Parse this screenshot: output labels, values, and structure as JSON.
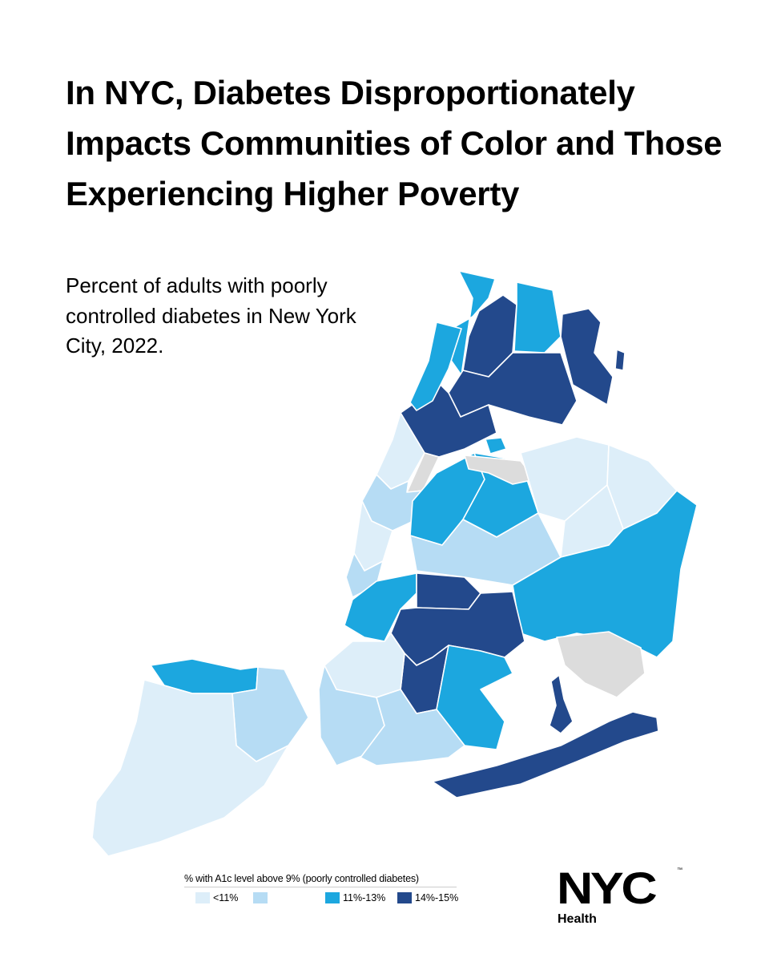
{
  "title": "In NYC, Diabetes Disproportionately Impacts Communities of Color and Those Experiencing Higher Poverty",
  "subtitle": "Percent of adults with poorly controlled diabetes in New York City, 2022.",
  "legend": {
    "title": "% with A1c level above 9% (poorly controlled diabetes)",
    "items": [
      {
        "label": "<11%",
        "color": "#ddeef9"
      },
      {
        "label": "",
        "color": "#b6dcf4"
      },
      {
        "label": "11%-13%",
        "color": "#1ca7df"
      },
      {
        "label": "14%-15%",
        "color": "#23498c"
      }
    ],
    "no_data_color": "#dcdcdc"
  },
  "logo": {
    "wordmark": "NYC",
    "trademark": "™",
    "agency": "Health"
  }
}
